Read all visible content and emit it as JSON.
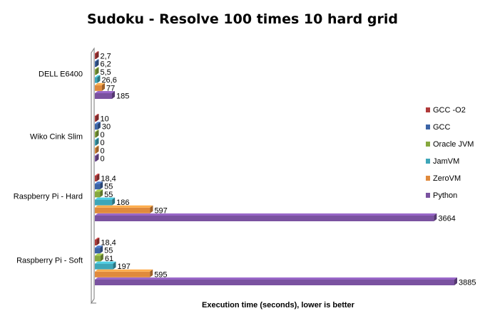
{
  "chart_data": {
    "type": "bar",
    "orientation": "horizontal",
    "title": "Sudoku - Resolve 100 times 10 hard grid",
    "xlabel": "Execution time (seconds), lower is better",
    "ylabel": "",
    "xlim": [
      0,
      3885
    ],
    "grid": false,
    "legend_position": "right",
    "categories": [
      "DELL E6400",
      "Wiko Cink Slim",
      "Raspberry Pi - Hard",
      "Raspberry Pi - Soft"
    ],
    "series": [
      {
        "name": "GCC -O2",
        "color": "#b03a3a",
        "values": [
          2.7,
          10,
          18.4,
          18.4
        ],
        "labels": [
          "2,7",
          "10",
          "18,4",
          "18,4"
        ]
      },
      {
        "name": "GCC",
        "color": "#3c64a6",
        "values": [
          6.2,
          30,
          55,
          55
        ],
        "labels": [
          "6,2",
          "30",
          "55",
          "55"
        ]
      },
      {
        "name": "Oracle JVM",
        "color": "#86a83e",
        "values": [
          5.5,
          0,
          55,
          61
        ],
        "labels": [
          "5,5",
          "0",
          "55",
          "61"
        ]
      },
      {
        "name": "JamVM",
        "color": "#3ea6b8",
        "values": [
          26.6,
          0,
          186,
          197
        ],
        "labels": [
          "26,6",
          "0",
          "186",
          "197"
        ]
      },
      {
        "name": "ZeroVM",
        "color": "#e08a3c",
        "values": [
          77,
          0,
          597,
          595
        ],
        "labels": [
          "77",
          "0",
          "597",
          "595"
        ]
      },
      {
        "name": "Python",
        "color": "#7a52a0",
        "values": [
          185,
          0,
          3664,
          3885
        ],
        "labels": [
          "185",
          "0",
          "3664",
          "3885"
        ]
      }
    ]
  }
}
